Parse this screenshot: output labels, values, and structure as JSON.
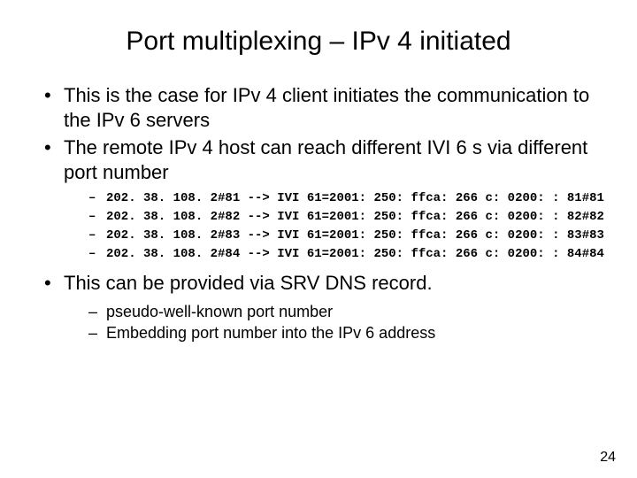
{
  "title": "Port multiplexing – IPv 4 initiated",
  "bullets": {
    "b1": "This is the case for IPv 4 client initiates the communication to the IPv 6 servers",
    "b2": "The remote IPv 4 host can reach different IVI 6 s via different port number",
    "b3": "This can be provided via SRV DNS record."
  },
  "mappings": {
    "m1": "202. 38. 108. 2#81 --> IVI 61=2001: 250: ffca: 266 c: 0200: : 81#81",
    "m2": "202. 38. 108. 2#82 --> IVI 61=2001: 250: ffca: 266 c: 0200: : 82#82",
    "m3": "202. 38. 108. 2#83 --> IVI 61=2001: 250: ffca: 266 c: 0200: : 83#83",
    "m4": "202. 38. 108. 2#84 --> IVI 61=2001: 250: ffca: 266 c: 0200: : 84#84"
  },
  "sub2": {
    "s1": "pseudo-well-known port number",
    "s2": "Embedding port number into the IPv 6 address"
  },
  "page_number": "24"
}
